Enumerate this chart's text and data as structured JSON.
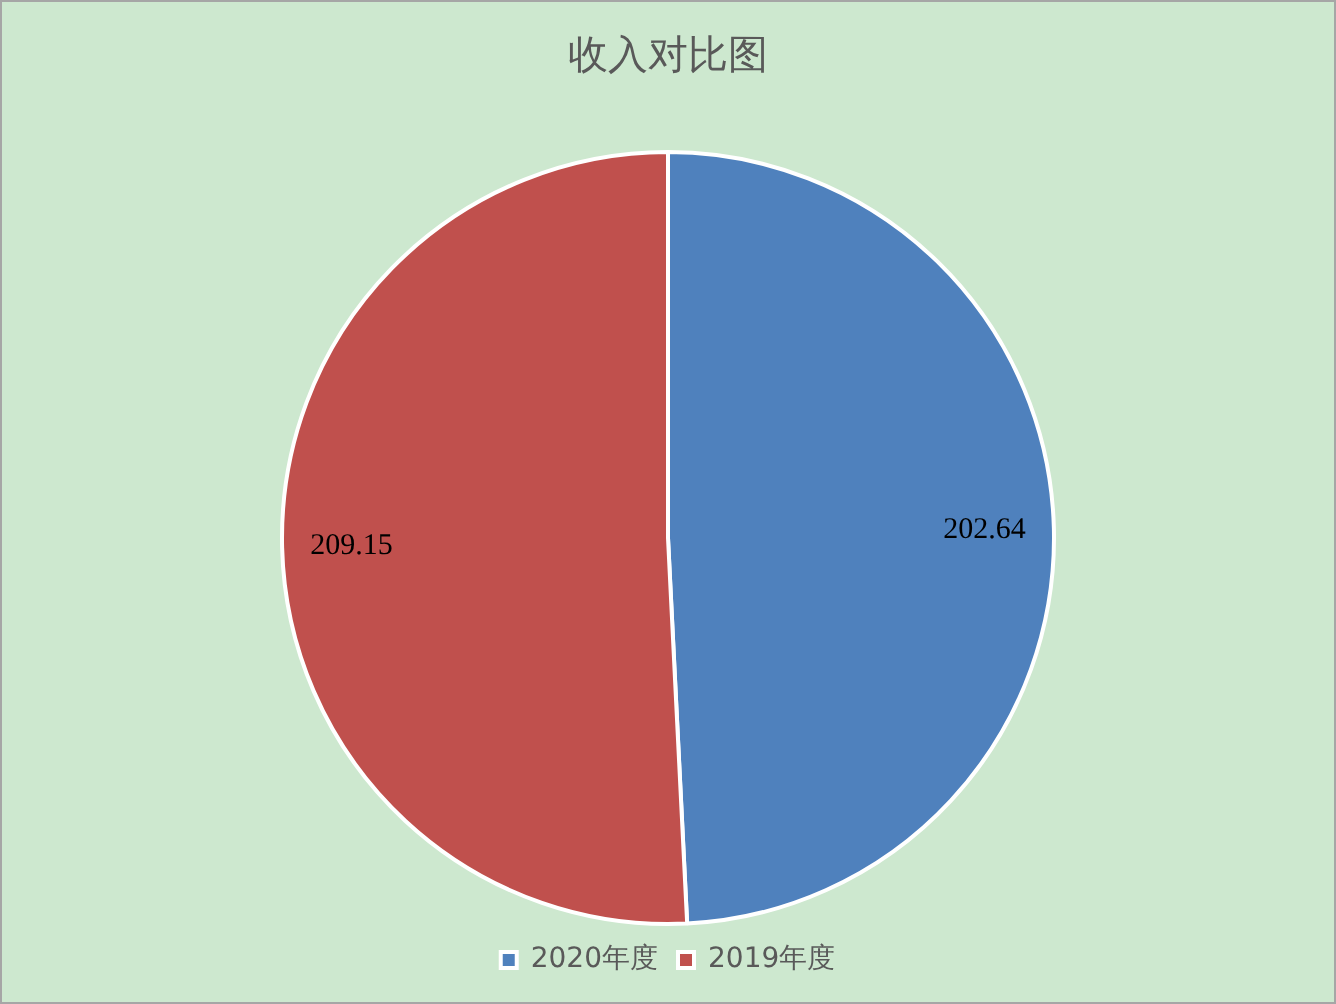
{
  "chart_data": {
    "type": "pie",
    "title": "收入对比图",
    "categories": [
      "2020年度",
      "2019年度"
    ],
    "values": [
      202.64,
      209.15
    ],
    "colors": [
      "#4f81bd",
      "#c0504d"
    ],
    "data_labels": true,
    "legend": "bottom"
  }
}
